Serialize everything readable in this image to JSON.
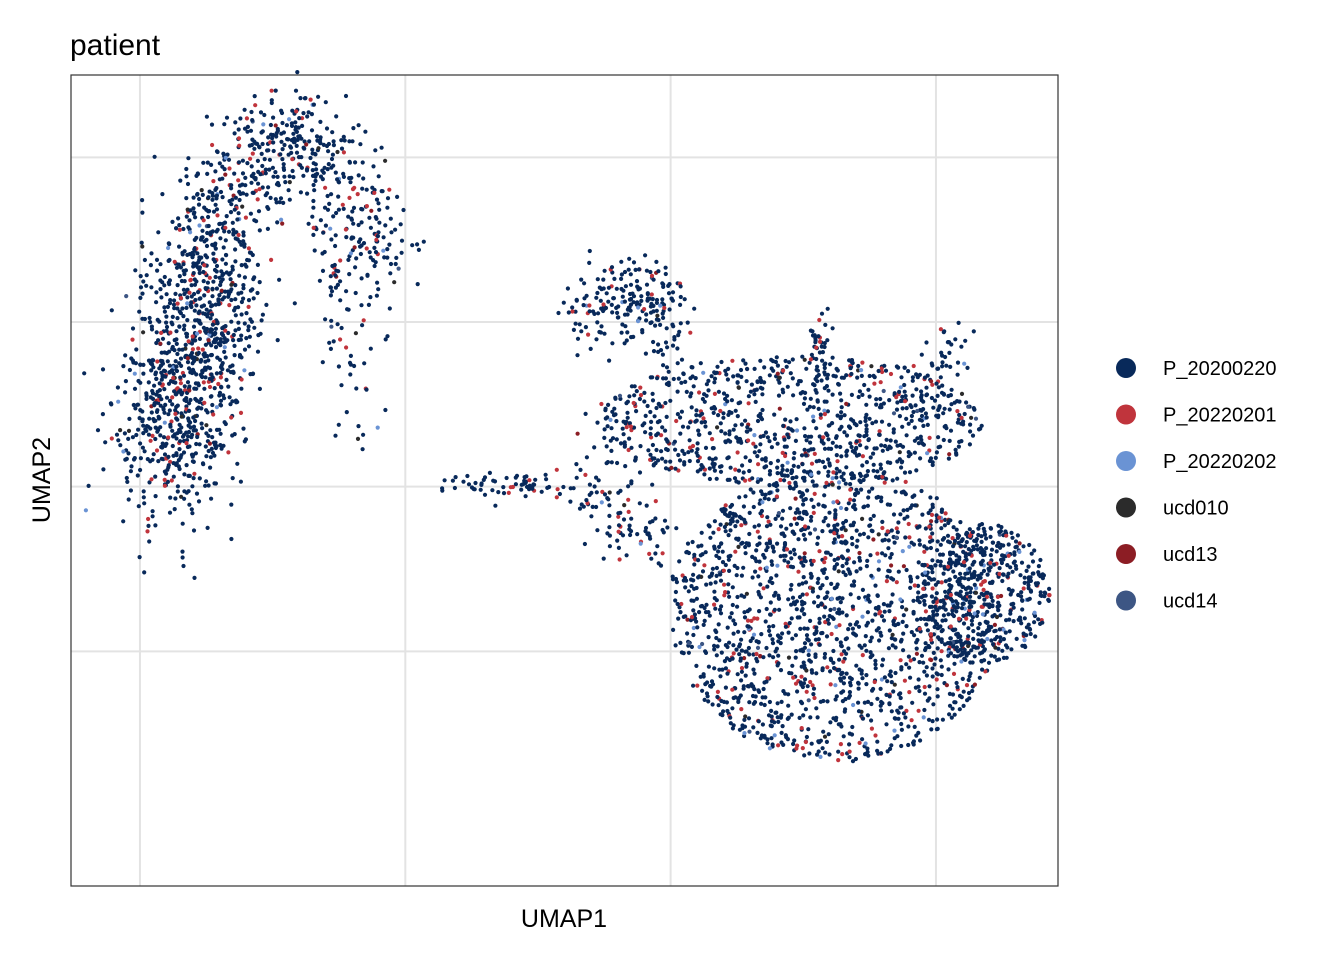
{
  "chart_data": {
    "type": "scatter",
    "title": "patient",
    "xlabel": "UMAP1",
    "ylabel": "UMAP2",
    "grid": true,
    "axis_tick_labels_shown": false,
    "legend_position": "right",
    "xlim": [
      -8.3,
      10.3
    ],
    "ylim": [
      -9.7,
      10.0
    ],
    "series": [
      {
        "name": "P_20200220",
        "color": "#08295a",
        "share": 0.86
      },
      {
        "name": "P_20220201",
        "color": "#c0343c",
        "share": 0.09
      },
      {
        "name": "P_20220202",
        "color": "#6a93d4",
        "share": 0.02
      },
      {
        "name": "ucd010",
        "color": "#2b2b2b",
        "share": 0.015
      },
      {
        "name": "ucd13",
        "color": "#8c1d24",
        "share": 0.01
      },
      {
        "name": "ucd14",
        "color": "#3d5684",
        "share": 0.005
      }
    ],
    "clusters": [
      {
        "id": "left-arc-band",
        "n_points": 1050
      },
      {
        "id": "left-arc-tip",
        "n_points": 520
      },
      {
        "id": "left-arc-tail",
        "n_points": 55
      },
      {
        "id": "middle-strand",
        "n_points": 75
      },
      {
        "id": "right-top-hook",
        "n_points": 220
      },
      {
        "id": "right-upper-body",
        "n_points": 850
      },
      {
        "id": "right-lower-body",
        "n_points": 1650
      },
      {
        "id": "right-east-lobe",
        "n_points": 480
      },
      {
        "id": "right-left-arm",
        "n_points": 110
      },
      {
        "id": "right-spike-1",
        "n_points": 28
      },
      {
        "id": "right-spike-2",
        "n_points": 55
      }
    ]
  }
}
